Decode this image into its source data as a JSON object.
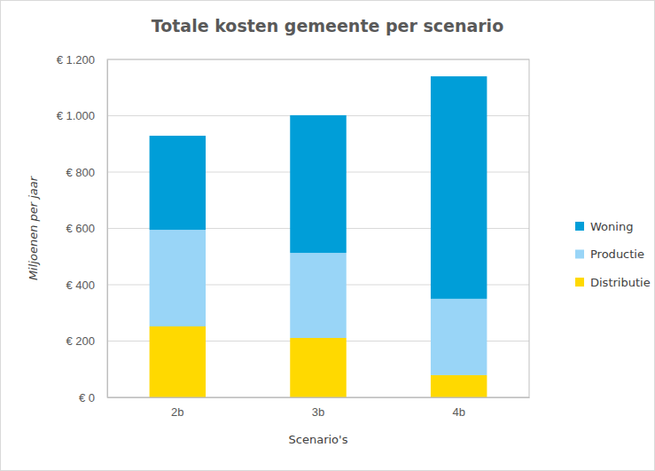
{
  "chart_data": {
    "type": "bar",
    "stacked": true,
    "title": "Totale kosten gemeente per scenario",
    "x_label": "Scenario's",
    "y_label": "Miljoenen per jaar",
    "categories": [
      "2b",
      "3b",
      "4b"
    ],
    "series": [
      {
        "name": "Distributie",
        "color": "#ffd900",
        "values": [
          252,
          211,
          79
        ]
      },
      {
        "name": "Productie",
        "color": "#99d5f7",
        "values": [
          343,
          302,
          271
        ]
      },
      {
        "name": "Woning",
        "color": "#009ed8",
        "values": [
          334,
          489,
          790
        ]
      }
    ],
    "ylim": [
      0,
      1200
    ],
    "yticks": [
      {
        "value": 0,
        "label": "€ 0"
      },
      {
        "value": 200,
        "label": "€ 200"
      },
      {
        "value": 400,
        "label": "€ 400"
      },
      {
        "value": 600,
        "label": "€ 600"
      },
      {
        "value": 800,
        "label": "€ 800"
      },
      {
        "value": 1000,
        "label": "€ 1.000"
      },
      {
        "value": 1200,
        "label": "€ 1.200"
      }
    ],
    "grid": true,
    "legend": "right"
  }
}
